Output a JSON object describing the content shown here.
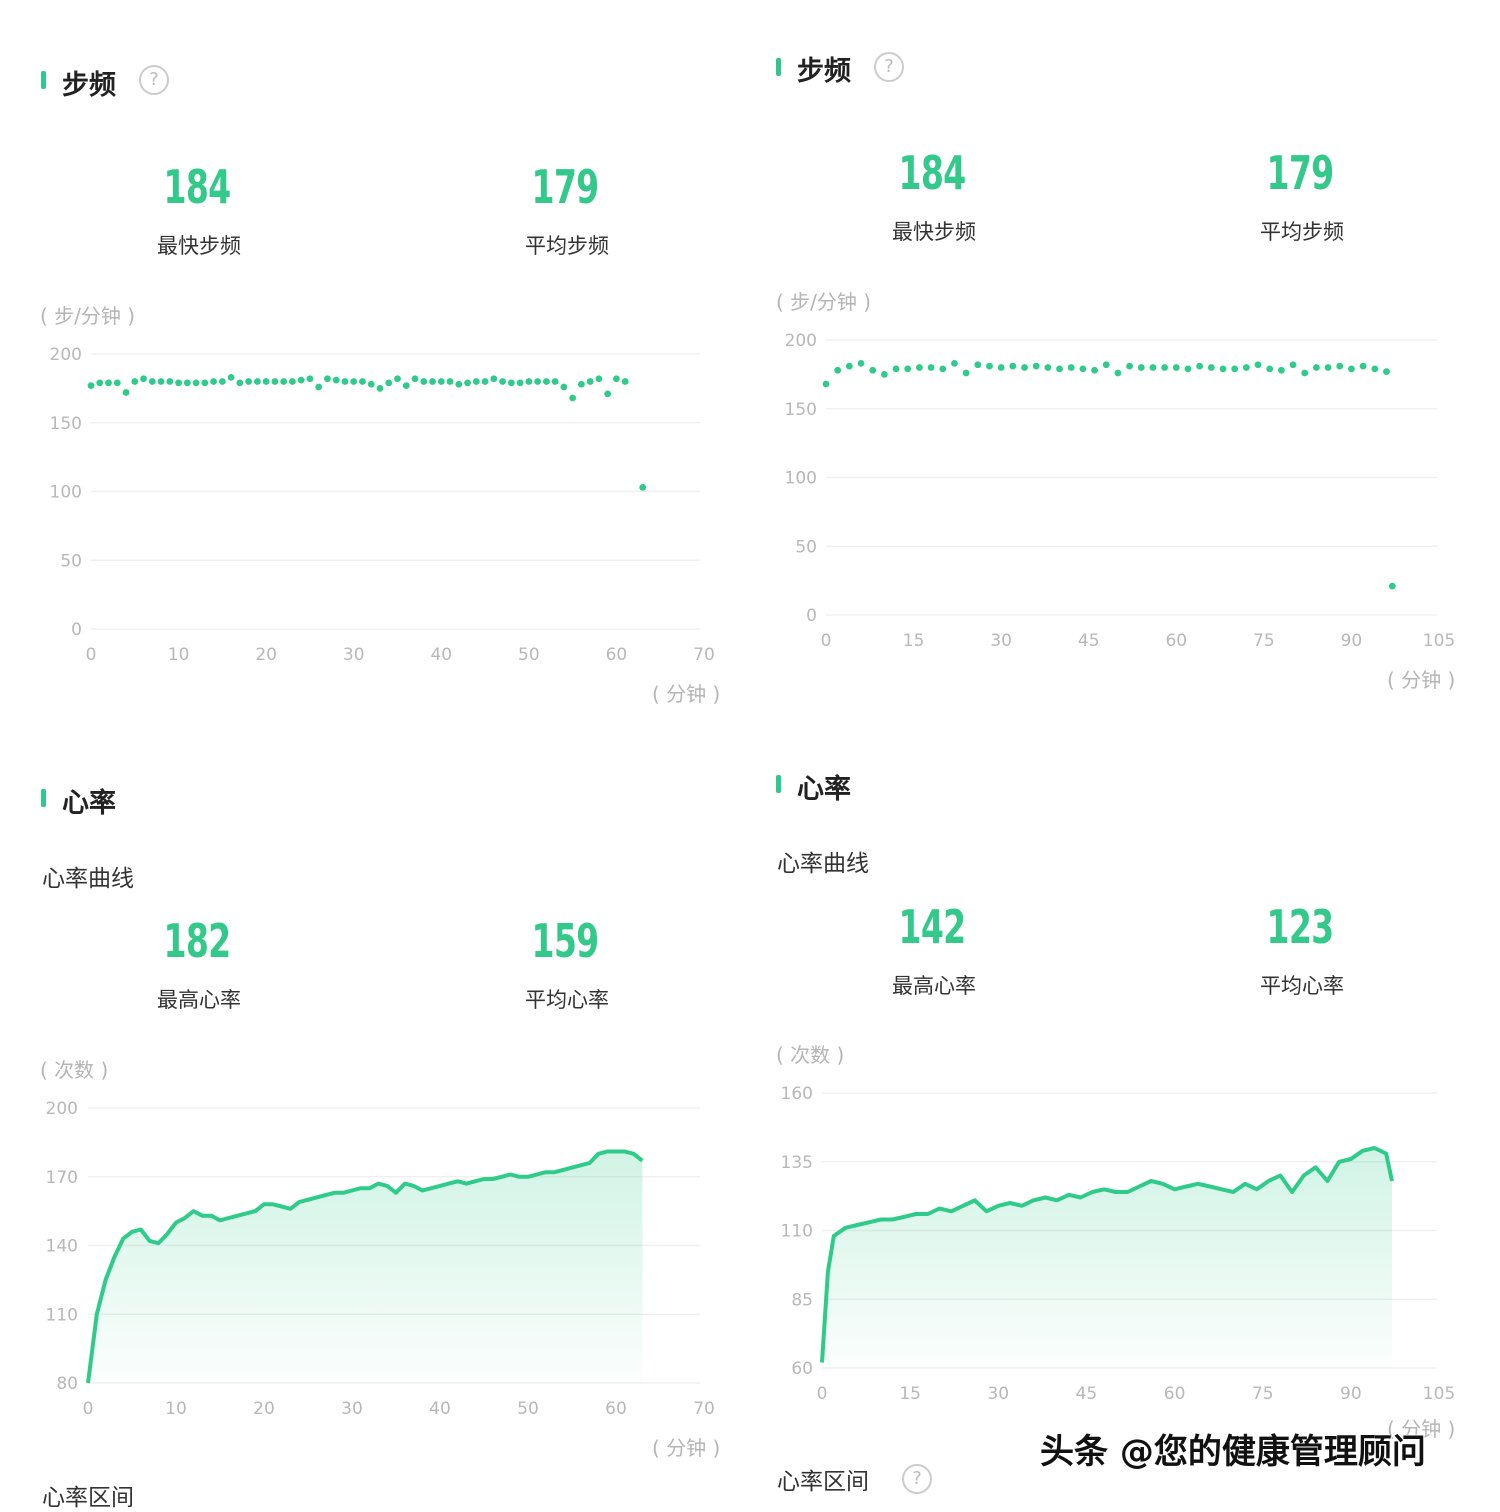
{
  "colors": {
    "accent": "#2fcb8a",
    "grid": "#f0f0f0",
    "tick": "#b8b8b8"
  },
  "panels": {
    "tl": {
      "title": "步频",
      "help_icon": "question-circle-icon",
      "stat1": {
        "value": "184",
        "label": "最快步频"
      },
      "stat2": {
        "value": "179",
        "label": "平均步频"
      },
      "yunit": "( 步/分钟 )",
      "xunit": "( 分钟 )"
    },
    "tr": {
      "title": "步频",
      "help_icon": "question-circle-icon",
      "stat1": {
        "value": "184",
        "label": "最快步频"
      },
      "stat2": {
        "value": "179",
        "label": "平均步频"
      },
      "yunit": "( 步/分钟 )",
      "xunit": "( 分钟 )"
    },
    "bl": {
      "title": "心率",
      "subtitle": "心率曲线",
      "stat1": {
        "value": "182",
        "label": "最高心率"
      },
      "stat2": {
        "value": "159",
        "label": "平均心率"
      },
      "yunit": "( 次数 )",
      "xunit": "( 分钟 )",
      "next_section": "心率区间"
    },
    "br": {
      "title": "心率",
      "subtitle": "心率曲线",
      "stat1": {
        "value": "142",
        "label": "最高心率"
      },
      "stat2": {
        "value": "123",
        "label": "平均心率"
      },
      "yunit": "( 次数 )",
      "xunit": "( 分钟 )",
      "next_section": "心率区间"
    }
  },
  "watermark": "头条 @您的健康管理顾问",
  "chart_data": [
    {
      "type": "scatter",
      "ylim": [
        0,
        200
      ],
      "yticks": [
        0,
        50,
        100,
        150,
        200
      ],
      "xlim": [
        0,
        70
      ],
      "xticks": [
        0,
        10,
        20,
        30,
        40,
        50,
        60,
        70
      ],
      "grid": true,
      "points": [
        [
          0,
          177
        ],
        [
          1,
          179
        ],
        [
          2,
          179
        ],
        [
          3,
          179
        ],
        [
          4,
          172
        ],
        [
          5,
          180
        ],
        [
          6,
          182
        ],
        [
          7,
          180
        ],
        [
          8,
          180
        ],
        [
          9,
          180
        ],
        [
          10,
          179
        ],
        [
          11,
          179
        ],
        [
          12,
          179
        ],
        [
          13,
          179
        ],
        [
          14,
          180
        ],
        [
          15,
          180
        ],
        [
          16,
          183
        ],
        [
          17,
          179
        ],
        [
          18,
          180
        ],
        [
          19,
          180
        ],
        [
          20,
          180
        ],
        [
          21,
          180
        ],
        [
          22,
          180
        ],
        [
          23,
          180
        ],
        [
          24,
          181
        ],
        [
          25,
          182
        ],
        [
          26,
          176
        ],
        [
          27,
          182
        ],
        [
          28,
          181
        ],
        [
          29,
          180
        ],
        [
          30,
          180
        ],
        [
          31,
          180
        ],
        [
          32,
          178
        ],
        [
          33,
          175
        ],
        [
          34,
          179
        ],
        [
          35,
          182
        ],
        [
          36,
          177
        ],
        [
          37,
          182
        ],
        [
          38,
          180
        ],
        [
          39,
          180
        ],
        [
          40,
          180
        ],
        [
          41,
          180
        ],
        [
          42,
          178
        ],
        [
          43,
          179
        ],
        [
          44,
          180
        ],
        [
          45,
          180
        ],
        [
          46,
          182
        ],
        [
          47,
          180
        ],
        [
          48,
          179
        ],
        [
          49,
          179
        ],
        [
          50,
          180
        ],
        [
          51,
          180
        ],
        [
          52,
          180
        ],
        [
          53,
          180
        ],
        [
          54,
          176
        ],
        [
          55,
          168
        ],
        [
          56,
          178
        ],
        [
          57,
          180
        ],
        [
          58,
          182
        ],
        [
          59,
          171
        ],
        [
          60,
          182
        ],
        [
          61,
          180
        ],
        [
          63,
          103
        ]
      ]
    },
    {
      "type": "scatter",
      "ylim": [
        0,
        200
      ],
      "yticks": [
        0,
        50,
        100,
        150,
        200
      ],
      "xlim": [
        0,
        105
      ],
      "xticks": [
        0,
        15,
        30,
        45,
        60,
        75,
        90,
        105
      ],
      "grid": true,
      "points": [
        [
          0,
          168
        ],
        [
          2,
          178
        ],
        [
          4,
          181
        ],
        [
          6,
          183
        ],
        [
          8,
          178
        ],
        [
          10,
          175
        ],
        [
          12,
          179
        ],
        [
          14,
          179
        ],
        [
          16,
          180
        ],
        [
          18,
          180
        ],
        [
          20,
          179
        ],
        [
          22,
          183
        ],
        [
          24,
          176
        ],
        [
          26,
          182
        ],
        [
          28,
          181
        ],
        [
          30,
          180
        ],
        [
          32,
          181
        ],
        [
          34,
          180
        ],
        [
          36,
          181
        ],
        [
          38,
          180
        ],
        [
          40,
          179
        ],
        [
          42,
          180
        ],
        [
          44,
          179
        ],
        [
          46,
          178
        ],
        [
          48,
          182
        ],
        [
          50,
          176
        ],
        [
          52,
          181
        ],
        [
          54,
          180
        ],
        [
          56,
          180
        ],
        [
          58,
          180
        ],
        [
          60,
          180
        ],
        [
          62,
          179
        ],
        [
          64,
          181
        ],
        [
          66,
          180
        ],
        [
          68,
          179
        ],
        [
          70,
          179
        ],
        [
          72,
          180
        ],
        [
          74,
          182
        ],
        [
          76,
          179
        ],
        [
          78,
          178
        ],
        [
          80,
          182
        ],
        [
          82,
          176
        ],
        [
          84,
          180
        ],
        [
          86,
          180
        ],
        [
          88,
          181
        ],
        [
          90,
          179
        ],
        [
          92,
          181
        ],
        [
          94,
          179
        ],
        [
          96,
          177
        ],
        [
          97,
          21
        ]
      ]
    },
    {
      "type": "area",
      "ylim": [
        80,
        200
      ],
      "yticks": [
        80,
        110,
        140,
        170,
        200
      ],
      "xlim": [
        0,
        70
      ],
      "xticks": [
        0,
        10,
        20,
        30,
        40,
        50,
        60,
        70
      ],
      "grid": true,
      "points": [
        [
          0,
          80
        ],
        [
          1,
          110
        ],
        [
          2,
          125
        ],
        [
          3,
          135
        ],
        [
          4,
          143
        ],
        [
          5,
          146
        ],
        [
          6,
          147
        ],
        [
          7,
          142
        ],
        [
          8,
          141
        ],
        [
          9,
          145
        ],
        [
          10,
          150
        ],
        [
          11,
          152
        ],
        [
          12,
          155
        ],
        [
          13,
          153
        ],
        [
          14,
          153
        ],
        [
          15,
          151
        ],
        [
          16,
          152
        ],
        [
          17,
          153
        ],
        [
          18,
          154
        ],
        [
          19,
          155
        ],
        [
          20,
          158
        ],
        [
          21,
          158
        ],
        [
          22,
          157
        ],
        [
          23,
          156
        ],
        [
          24,
          159
        ],
        [
          25,
          160
        ],
        [
          26,
          161
        ],
        [
          27,
          162
        ],
        [
          28,
          163
        ],
        [
          29,
          163
        ],
        [
          30,
          164
        ],
        [
          31,
          165
        ],
        [
          32,
          165
        ],
        [
          33,
          167
        ],
        [
          34,
          166
        ],
        [
          35,
          163
        ],
        [
          36,
          167
        ],
        [
          37,
          166
        ],
        [
          38,
          164
        ],
        [
          39,
          165
        ],
        [
          40,
          166
        ],
        [
          41,
          167
        ],
        [
          42,
          168
        ],
        [
          43,
          167
        ],
        [
          44,
          168
        ],
        [
          45,
          169
        ],
        [
          46,
          169
        ],
        [
          47,
          170
        ],
        [
          48,
          171
        ],
        [
          49,
          170
        ],
        [
          50,
          170
        ],
        [
          51,
          171
        ],
        [
          52,
          172
        ],
        [
          53,
          172
        ],
        [
          54,
          173
        ],
        [
          55,
          174
        ],
        [
          56,
          175
        ],
        [
          57,
          176
        ],
        [
          58,
          180
        ],
        [
          59,
          181
        ],
        [
          60,
          181
        ],
        [
          61,
          181
        ],
        [
          62,
          180
        ],
        [
          63,
          177
        ]
      ]
    },
    {
      "type": "area",
      "ylim": [
        60,
        160
      ],
      "yticks": [
        60,
        85,
        110,
        135,
        160
      ],
      "xlim": [
        0,
        105
      ],
      "xticks": [
        0,
        15,
        30,
        45,
        60,
        75,
        90,
        105
      ],
      "grid": true,
      "points": [
        [
          0,
          62
        ],
        [
          1,
          95
        ],
        [
          2,
          108
        ],
        [
          4,
          111
        ],
        [
          6,
          112
        ],
        [
          8,
          113
        ],
        [
          10,
          114
        ],
        [
          12,
          114
        ],
        [
          14,
          115
        ],
        [
          16,
          116
        ],
        [
          18,
          116
        ],
        [
          20,
          118
        ],
        [
          22,
          117
        ],
        [
          24,
          119
        ],
        [
          26,
          121
        ],
        [
          28,
          117
        ],
        [
          30,
          119
        ],
        [
          32,
          120
        ],
        [
          34,
          119
        ],
        [
          36,
          121
        ],
        [
          38,
          122
        ],
        [
          40,
          121
        ],
        [
          42,
          123
        ],
        [
          44,
          122
        ],
        [
          46,
          124
        ],
        [
          48,
          125
        ],
        [
          50,
          124
        ],
        [
          52,
          124
        ],
        [
          54,
          126
        ],
        [
          56,
          128
        ],
        [
          58,
          127
        ],
        [
          60,
          125
        ],
        [
          62,
          126
        ],
        [
          64,
          127
        ],
        [
          66,
          126
        ],
        [
          68,
          125
        ],
        [
          70,
          124
        ],
        [
          72,
          127
        ],
        [
          74,
          125
        ],
        [
          76,
          128
        ],
        [
          78,
          130
        ],
        [
          80,
          124
        ],
        [
          82,
          130
        ],
        [
          84,
          133
        ],
        [
          86,
          128
        ],
        [
          88,
          135
        ],
        [
          90,
          136
        ],
        [
          92,
          139
        ],
        [
          94,
          140
        ],
        [
          96,
          138
        ],
        [
          97,
          128
        ]
      ]
    }
  ]
}
